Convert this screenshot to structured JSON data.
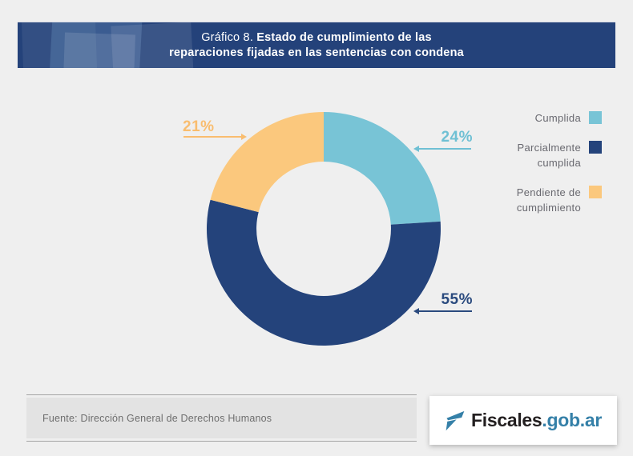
{
  "header": {
    "title_prefix": "Gráfico 8.",
    "title_bold_line1": "Estado de cumplimiento de las",
    "title_line2": "reparaciones fijadas en las sentencias con condena",
    "bg_color": "#24427a"
  },
  "chart_data": {
    "type": "pie",
    "subtype": "donut",
    "title": "Gráfico 8. Estado de cumplimiento de las reparaciones fijadas en las sentencias con condena",
    "categories": [
      "Cumplida",
      "Parcialmente cumplida",
      "Pendiente de cumplimiento"
    ],
    "values": [
      24,
      55,
      21
    ],
    "unit": "%",
    "colors": [
      "#78c4d6",
      "#24437b",
      "#fbc87d"
    ],
    "start_angle_deg": 0,
    "direction": "clockwise",
    "inner_radius_ratio": 0.575,
    "legend_position": "right",
    "labels": [
      {
        "text": "24%",
        "color": "#6fc0d4"
      },
      {
        "text": "55%",
        "color": "#2a4a7e"
      },
      {
        "text": "21%",
        "color": "#f9bd6f"
      }
    ]
  },
  "legend": {
    "items": [
      {
        "label": "Cumplida",
        "color": "#78c4d6"
      },
      {
        "label": "Parcialmente cumplida",
        "color": "#24437b"
      },
      {
        "label": "Pendiente de cumplimiento",
        "color": "#fbc87d"
      }
    ]
  },
  "footer": {
    "source": "Fuente: Dirección General de Derechos Humanos",
    "logo": {
      "name": "Fiscales",
      "suffix": ".gob.ar"
    }
  }
}
